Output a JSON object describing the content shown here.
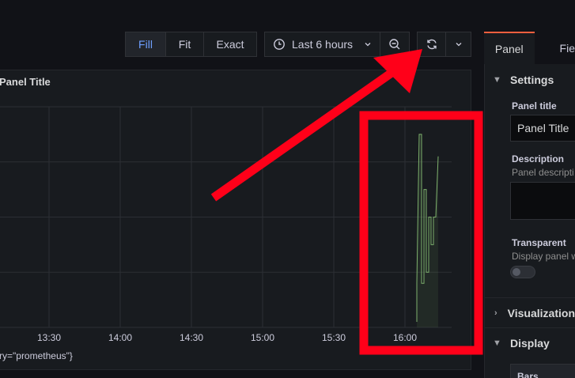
{
  "toolbar": {
    "view_modes": [
      "Fill",
      "Fit",
      "Exact"
    ],
    "active_view_mode": "Fill",
    "time_range": "Last 6 hours",
    "icons": [
      "clock-icon",
      "chevron-down-icon",
      "zoom-out-icon",
      "refresh-icon",
      "chevron-down-icon"
    ]
  },
  "panel": {
    "title": "Panel Title",
    "legend_text": "ry=\"prometheus\"}"
  },
  "chart_data": {
    "type": "line",
    "x_tick_labels": [
      "13:30",
      "14:00",
      "14:30",
      "15:00",
      "15:30",
      "16:00"
    ],
    "series": [
      {
        "color": "#7eb26d",
        "x": [
          "16:05",
          "16:05",
          "16:06",
          "16:07",
          "16:07",
          "16:08",
          "16:08",
          "16:09",
          "16:09",
          "16:10",
          "16:10",
          "16:11",
          "16:11",
          "16:12",
          "16:12",
          "16:13",
          "16:14"
        ],
        "y": [
          0.1,
          0.8,
          3.5,
          3.5,
          0.8,
          0.8,
          2.5,
          2.5,
          1.0,
          1.0,
          2.0,
          2.0,
          1.5,
          1.5,
          2.0,
          2.0,
          3.1
        ]
      }
    ],
    "grid": true
  },
  "sidebar": {
    "tabs": [
      "Panel",
      "Fie"
    ],
    "sections": {
      "settings": "Settings",
      "visualization": "Visualization",
      "display": "Display"
    },
    "panel_title_label": "Panel title",
    "panel_title_value": "Panel Title",
    "description_label": "Description",
    "description_placeholder": "Panel descripti",
    "transparent_label": "Transparent",
    "transparent_desc": "Display panel w",
    "bars_label": "Bars"
  },
  "annotation_colors": {
    "marker": "#ff0019"
  }
}
